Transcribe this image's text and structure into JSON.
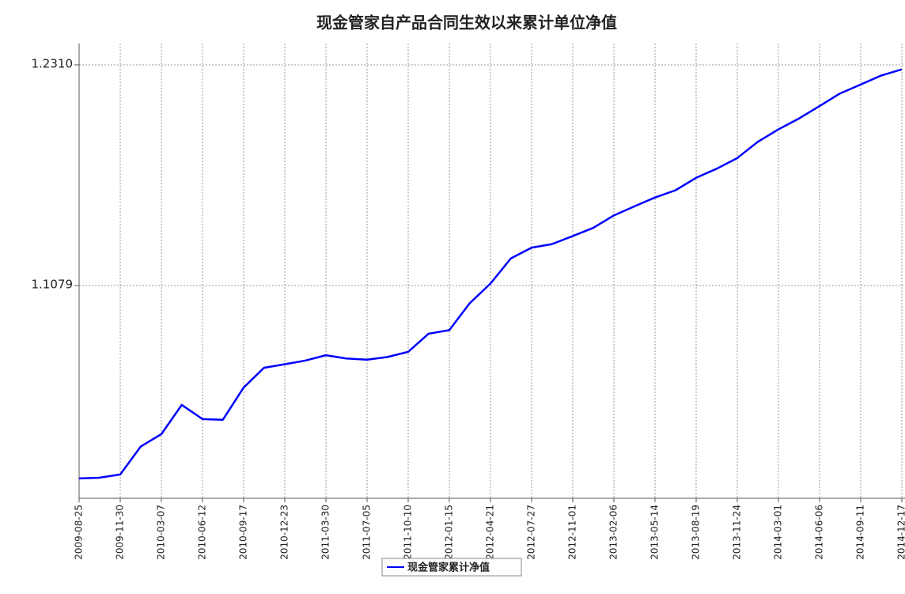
{
  "chart_data": {
    "type": "line",
    "title": "现金管家自产品合同生效以来累计单位净值",
    "x": [
      "2009-08-25",
      "2009-10-12",
      "2009-11-30",
      "2010-01-17",
      "2010-03-07",
      "2010-04-24",
      "2010-06-12",
      "2010-07-30",
      "2010-09-17",
      "2010-11-04",
      "2010-12-23",
      "2011-02-09",
      "2011-03-30",
      "2011-05-17",
      "2011-07-05",
      "2011-08-22",
      "2011-10-10",
      "2011-11-27",
      "2012-01-15",
      "2012-03-03",
      "2012-04-21",
      "2012-06-08",
      "2012-07-27",
      "2012-09-13",
      "2012-11-01",
      "2012-12-19",
      "2013-02-06",
      "2013-03-26",
      "2013-05-14",
      "2013-07-01",
      "2013-08-19",
      "2013-10-06",
      "2013-11-24",
      "2014-01-11",
      "2014-03-01",
      "2014-04-18",
      "2014-06-06",
      "2014-07-24",
      "2014-09-11",
      "2014-10-29",
      "2014-12-17"
    ],
    "series": [
      {
        "name": "现金管家累计净值",
        "color": "#0000ff",
        "values": [
          1.0003,
          1.0007,
          1.0025,
          1.018,
          1.025,
          1.0413,
          1.0334,
          1.033,
          1.051,
          1.062,
          1.064,
          1.066,
          1.069,
          1.0672,
          1.0665,
          1.068,
          1.0709,
          1.081,
          1.083,
          1.098,
          1.109,
          1.123,
          1.129,
          1.131,
          1.1355,
          1.14,
          1.147,
          1.152,
          1.157,
          1.161,
          1.168,
          1.173,
          1.179,
          1.188,
          1.195,
          1.201,
          1.208,
          1.215,
          1.22,
          1.225,
          1.2285
        ]
      }
    ],
    "xlim": [
      "2009-08-25",
      "2014-12-17"
    ],
    "xticks": [
      "2009-08-25",
      "2009-11-30",
      "2010-03-07",
      "2010-06-12",
      "2010-09-17",
      "2010-12-23",
      "2011-03-30",
      "2011-07-05",
      "2011-10-10",
      "2012-01-15",
      "2012-04-21",
      "2012-07-27",
      "2012-11-01",
      "2013-02-06",
      "2013-05-14",
      "2013-08-19",
      "2013-11-24",
      "2014-03-01",
      "2014-06-06",
      "2014-09-11",
      "2014-12-17"
    ],
    "ylim": [
      0.9892,
      1.2429
    ],
    "yticks": [
      {
        "value": 1.1079,
        "label": "1.1079"
      },
      {
        "value": 1.231,
        "label": "1.2310"
      }
    ],
    "grid": true,
    "legend": "bottom"
  }
}
